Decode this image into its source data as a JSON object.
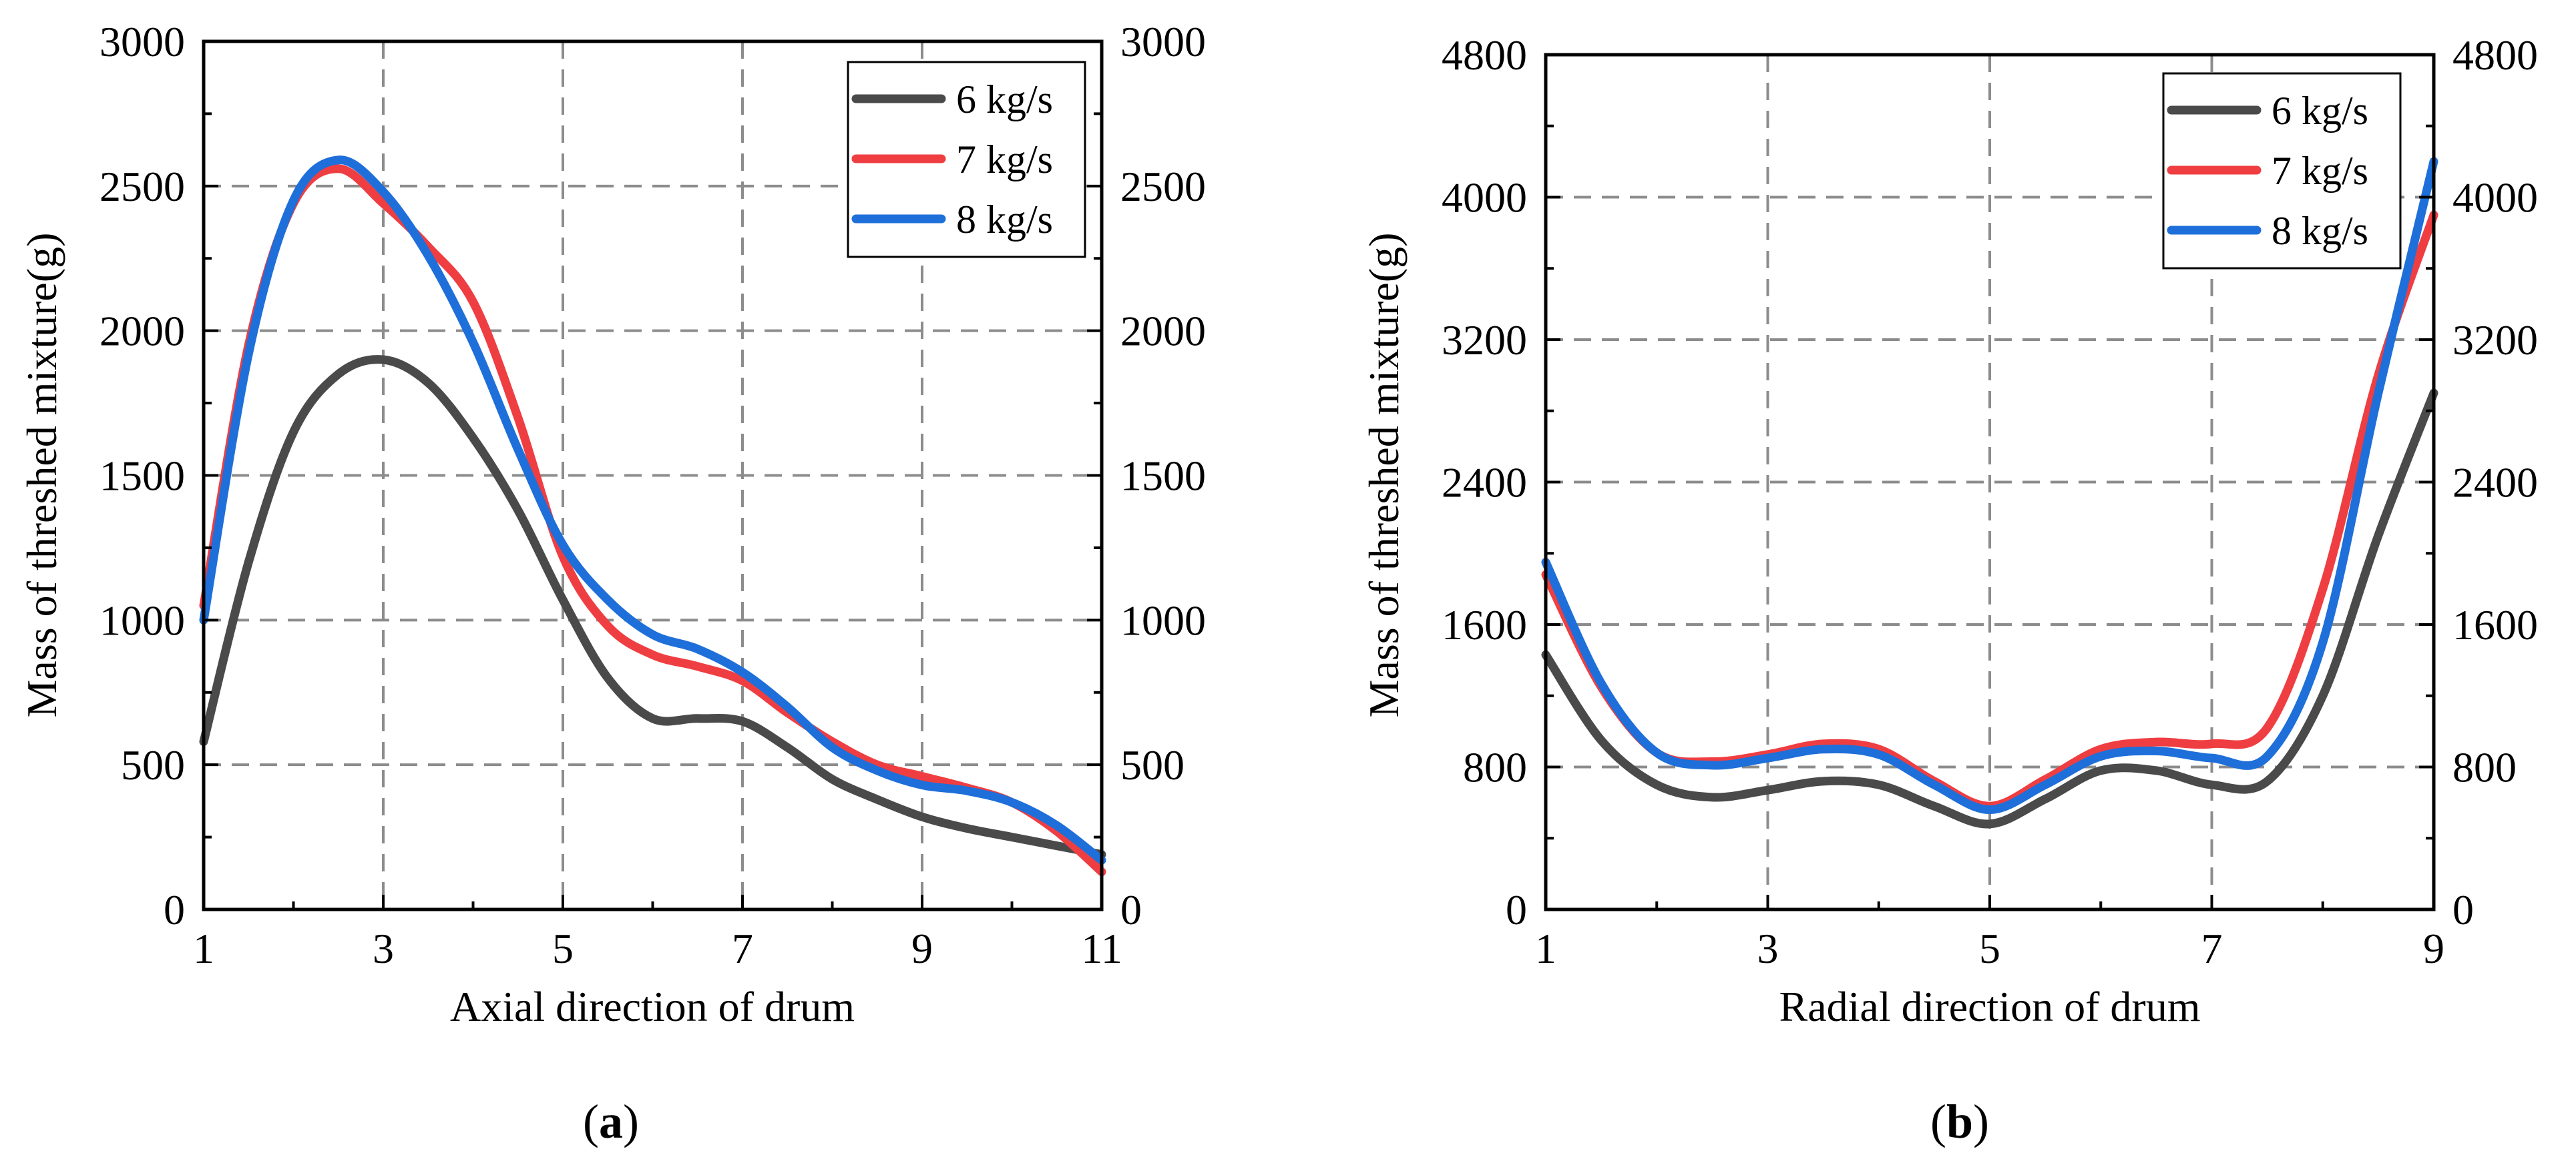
{
  "figure": {
    "panels": [
      "a",
      "b"
    ]
  },
  "chart_data": [
    {
      "id": "a",
      "type": "line",
      "panel_label": "a",
      "title": "",
      "xlabel": "Axial direction of drum",
      "ylabel": "Mass of threshed mixture(g)",
      "xlim": [
        1,
        11
      ],
      "ylim": [
        0,
        3000
      ],
      "xticks": [
        1,
        3,
        5,
        7,
        9,
        11
      ],
      "xtick_labels": [
        "1",
        "3",
        "5",
        "7",
        "9",
        "11"
      ],
      "yticks": [
        0,
        500,
        1000,
        1500,
        2000,
        2500,
        3000
      ],
      "ytick_labels": [
        "0",
        "500",
        "1000",
        "1500",
        "2000",
        "2500",
        "3000"
      ],
      "right_yticks": [
        0,
        500,
        1000,
        1500,
        2000,
        2500,
        3000
      ],
      "right_ytick_labels": [
        "0",
        "500",
        "1000",
        "1500",
        "2000",
        "2500",
        "3000"
      ],
      "grid": true,
      "legend_position": "top-right",
      "x": [
        1,
        1.5,
        2,
        2.5,
        3,
        3.5,
        4,
        4.5,
        5,
        5.5,
        6,
        6.5,
        7,
        7.5,
        8,
        8.5,
        9,
        9.5,
        10,
        10.5,
        11
      ],
      "series": [
        {
          "name": "6 kg/s",
          "color": "#4a4a4a",
          "values": [
            580,
            1200,
            1650,
            1850,
            1900,
            1820,
            1630,
            1380,
            1070,
            800,
            660,
            660,
            650,
            560,
            450,
            380,
            320,
            280,
            250,
            220,
            190
          ]
        },
        {
          "name": "7 kg/s",
          "color": "#ef3e42",
          "values": [
            1050,
            1950,
            2440,
            2560,
            2440,
            2290,
            2100,
            1700,
            1220,
            980,
            880,
            840,
            790,
            680,
            580,
            500,
            460,
            420,
            370,
            270,
            130
          ]
        },
        {
          "name": "8 kg/s",
          "color": "#1e6fd9",
          "values": [
            1000,
            1920,
            2450,
            2590,
            2480,
            2260,
            1960,
            1590,
            1260,
            1070,
            950,
            900,
            820,
            700,
            560,
            480,
            430,
            410,
            370,
            290,
            170
          ]
        }
      ]
    },
    {
      "id": "b",
      "type": "line",
      "panel_label": "b",
      "title": "",
      "xlabel": "Radial direction of drum",
      "ylabel": "Mass of threshed mixture(g)",
      "xlim": [
        1,
        9
      ],
      "ylim": [
        0,
        4800
      ],
      "xticks": [
        1,
        3,
        5,
        7,
        9
      ],
      "xtick_labels": [
        "1",
        "3",
        "5",
        "7",
        "9"
      ],
      "yticks": [
        0,
        800,
        1600,
        2400,
        3200,
        4000,
        4800
      ],
      "ytick_labels": [
        "0",
        "800",
        "1600",
        "2400",
        "3200",
        "4000",
        "4800"
      ],
      "right_yticks": [
        0,
        800,
        1600,
        2400,
        3200,
        4000,
        4800
      ],
      "right_ytick_labels": [
        "0",
        "800",
        "1600",
        "2400",
        "3200",
        "4000",
        "4800"
      ],
      "grid": true,
      "legend_position": "top-right",
      "x": [
        1,
        1.5,
        2,
        2.5,
        3,
        3.5,
        4,
        4.5,
        5,
        5.5,
        6,
        6.5,
        7,
        7.5,
        8,
        8.5,
        9
      ],
      "series": [
        {
          "name": "6 kg/s",
          "color": "#4a4a4a",
          "values": [
            1430,
            950,
            700,
            630,
            670,
            720,
            700,
            580,
            480,
            620,
            780,
            780,
            700,
            720,
            1200,
            2100,
            2900
          ]
        },
        {
          "name": "7 kg/s",
          "color": "#ef3e42",
          "values": [
            1880,
            1250,
            880,
            830,
            870,
            930,
            900,
            720,
            580,
            730,
            900,
            940,
            930,
            1020,
            1800,
            3000,
            3900
          ]
        },
        {
          "name": "8 kg/s",
          "color": "#1e6fd9",
          "values": [
            1950,
            1270,
            880,
            810,
            850,
            900,
            870,
            700,
            560,
            700,
            860,
            890,
            850,
            860,
            1500,
            2900,
            4200
          ]
        }
      ]
    }
  ]
}
